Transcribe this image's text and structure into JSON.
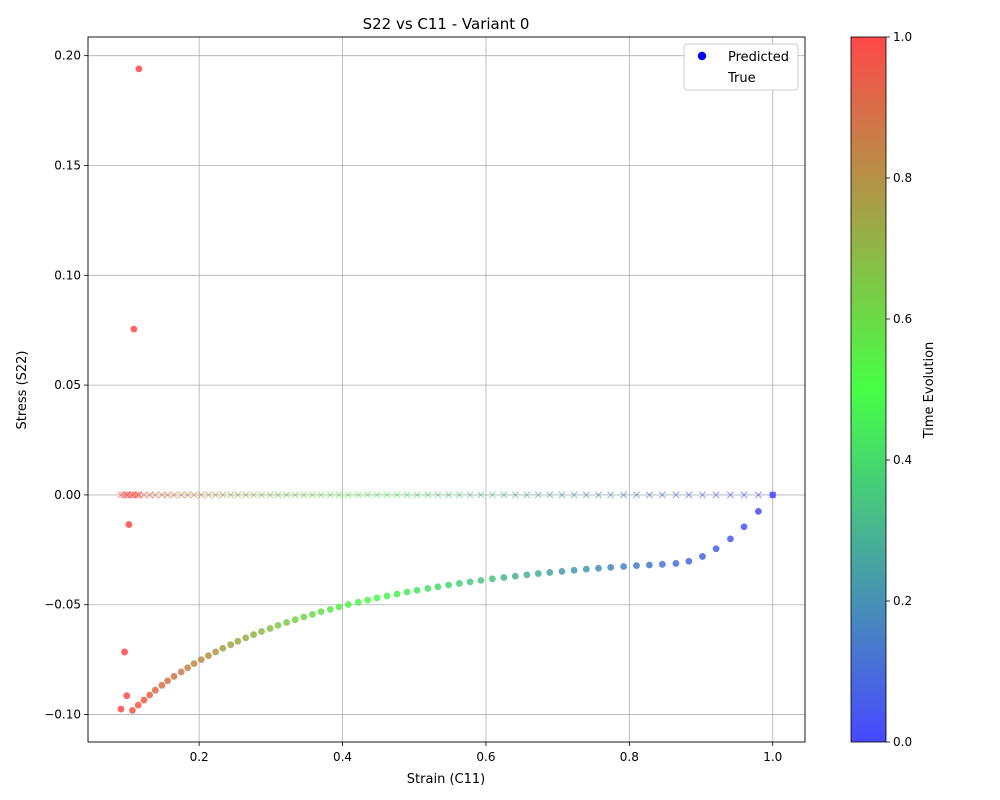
{
  "chart_data": {
    "type": "scatter",
    "title": "S22 vs C11 - Variant 0",
    "xlabel": "Strain (C11)",
    "ylabel": "Stress (S22)",
    "xlim": [
      0.045,
      1.045
    ],
    "ylim": [
      -0.1125,
      0.2085
    ],
    "x_ticks": [
      0.2,
      0.4,
      0.6,
      0.8,
      1.0
    ],
    "x_tick_labels": [
      "0.2",
      "0.4",
      "0.6",
      "0.8",
      "1.0"
    ],
    "y_ticks": [
      -0.1,
      -0.05,
      0.0,
      0.05,
      0.1,
      0.15,
      0.2
    ],
    "y_tick_labels": [
      "−0.10",
      "−0.05",
      "0.00",
      "0.05",
      "0.10",
      "0.15",
      "0.20"
    ],
    "grid": true,
    "legend_position": "top-right",
    "legend": [
      {
        "label": "Predicted",
        "marker": "circle",
        "color": "#0000ff"
      },
      {
        "label": "True",
        "marker": "x",
        "color": "#ffffff"
      }
    ],
    "colorbar": {
      "label": "Time Evolution",
      "range": [
        0.0,
        1.0
      ],
      "ticks": [
        0.0,
        0.2,
        0.4,
        0.6,
        0.8,
        1.0
      ],
      "tick_labels": [
        "0.0",
        "0.2",
        "0.4",
        "0.6",
        "0.8",
        "1.0"
      ],
      "colormap": [
        "#4848ff",
        "#46ff46",
        "#ff4848"
      ]
    },
    "series": [
      {
        "name": "Predicted",
        "marker": "circle",
        "curve_x": [
          1.0,
          0.98,
          0.96,
          0.941,
          0.921,
          0.902,
          0.883,
          0.865,
          0.846,
          0.828,
          0.81,
          0.792,
          0.774,
          0.757,
          0.74,
          0.723,
          0.706,
          0.689,
          0.673,
          0.657,
          0.641,
          0.625,
          0.609,
          0.593,
          0.578,
          0.563,
          0.548,
          0.533,
          0.519,
          0.504,
          0.49,
          0.476,
          0.462,
          0.448,
          0.435,
          0.422,
          0.408,
          0.395,
          0.383,
          0.37,
          0.358,
          0.346,
          0.334,
          0.322,
          0.31,
          0.299,
          0.287,
          0.276,
          0.265,
          0.254,
          0.244,
          0.233,
          0.223,
          0.213,
          0.203,
          0.193,
          0.184,
          0.175,
          0.165,
          0.156,
          0.148,
          0.139,
          0.131,
          0.123,
          0.115,
          0.107,
          0.099,
          0.091
        ],
        "curve_y": [
          0.0,
          -0.0075,
          -0.0145,
          -0.02,
          -0.0245,
          -0.028,
          -0.0302,
          -0.0312,
          -0.0316,
          -0.0319,
          -0.0322,
          -0.0326,
          -0.033,
          -0.0334,
          -0.0338,
          -0.0343,
          -0.0348,
          -0.0353,
          -0.0358,
          -0.0364,
          -0.037,
          -0.0376,
          -0.0382,
          -0.0389,
          -0.0396,
          -0.0403,
          -0.041,
          -0.0418,
          -0.0426,
          -0.0434,
          -0.0442,
          -0.0451,
          -0.046,
          -0.0469,
          -0.0479,
          -0.0489,
          -0.0499,
          -0.051,
          -0.0521,
          -0.0532,
          -0.0544,
          -0.0556,
          -0.0568,
          -0.0581,
          -0.0594,
          -0.0608,
          -0.0622,
          -0.0636,
          -0.0651,
          -0.0666,
          -0.0682,
          -0.0698,
          -0.0715,
          -0.0732,
          -0.075,
          -0.0768,
          -0.0787,
          -0.0806,
          -0.0826,
          -0.0846,
          -0.0867,
          -0.0889,
          -0.0911,
          -0.0934,
          -0.0957,
          -0.0981,
          -0.0914,
          -0.0975
        ],
        "outliers_x": [
          0.116,
          0.109,
          0.102,
          0.096
        ],
        "outliers_y": [
          0.194,
          0.0755,
          -0.0135,
          -0.0715
        ],
        "outliers_t": [
          1.0,
          1.0,
          1.0,
          1.0
        ]
      },
      {
        "name": "True",
        "marker": "x",
        "x_start": 1.0,
        "x_end": 0.091,
        "y": 0.0,
        "extra_x": [
          0.095,
          0.1,
          0.104,
          0.108,
          0.112,
          0.116
        ]
      }
    ]
  }
}
